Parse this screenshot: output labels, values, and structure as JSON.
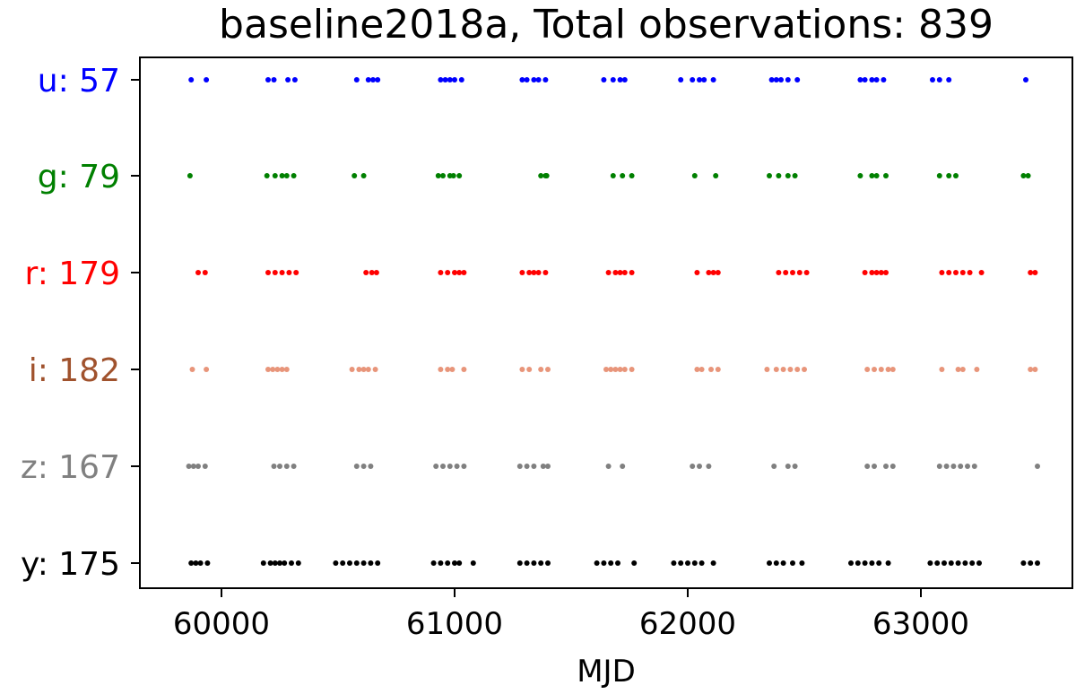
{
  "chart_data": {
    "type": "scatter",
    "title": "baseline2018a, Total observations: 839",
    "xlabel": "MJD",
    "ylabel": "",
    "xlim": [
      59650,
      63650
    ],
    "xticks": [
      "60000",
      "61000",
      "62000",
      "63000"
    ],
    "xtick_values": [
      60000,
      61000,
      62000,
      63000
    ],
    "grid": false,
    "legend": "none",
    "series": [
      {
        "label": "u: 57",
        "color": "#0000ff",
        "label_color": "#0000ff",
        "x": [
          59870,
          59935,
          60200,
          60225,
          60285,
          60315,
          60580,
          60630,
          60650,
          60670,
          60940,
          60960,
          60980,
          61000,
          61030,
          61290,
          61310,
          61340,
          61360,
          61390,
          61640,
          61680,
          61710,
          61730,
          61970,
          62020,
          62050,
          62070,
          62110,
          62360,
          62380,
          62400,
          62430,
          62470,
          62740,
          62760,
          62790,
          62810,
          62840,
          63050,
          63080,
          63120,
          63450
        ]
      },
      {
        "label": "g: 79",
        "color": "#008000",
        "label_color": "#008000",
        "x": [
          59865,
          60195,
          60230,
          60260,
          60280,
          60310,
          60570,
          60610,
          60930,
          60950,
          60980,
          60995,
          61020,
          61370,
          61395,
          61390,
          61680,
          61720,
          61760,
          62030,
          62120,
          62350,
          62390,
          62430,
          62460,
          62740,
          62790,
          62810,
          62850,
          63080,
          63120,
          63150,
          63440,
          63460
        ]
      },
      {
        "label": "r: 179",
        "color": "#ff0000",
        "label_color": "#ff0000",
        "x": [
          59900,
          59930,
          60200,
          60230,
          60260,
          60290,
          60320,
          60620,
          60645,
          60665,
          60940,
          60970,
          61000,
          61020,
          61040,
          61290,
          61320,
          61340,
          61360,
          61390,
          61660,
          61690,
          61710,
          61730,
          61760,
          62040,
          62090,
          62110,
          62130,
          62390,
          62420,
          62450,
          62480,
          62510,
          62760,
          62790,
          62810,
          62830,
          62850,
          63090,
          63120,
          63150,
          63180,
          63210,
          63260,
          63470,
          63490
        ]
      },
      {
        "label": "i: 182",
        "color": "#e8957a",
        "label_color": "#a0522d",
        "x": [
          59875,
          59935,
          60200,
          60220,
          60240,
          60260,
          60280,
          60560,
          60590,
          60610,
          60630,
          60660,
          60940,
          60970,
          60990,
          61040,
          61290,
          61320,
          61370,
          61400,
          61650,
          61670,
          61690,
          61710,
          61730,
          61760,
          62040,
          62060,
          62100,
          62130,
          62340,
          62380,
          62410,
          62440,
          62470,
          62500,
          62770,
          62800,
          62830,
          62860,
          62880,
          63090,
          63160,
          63180,
          63240,
          63470,
          63490
        ]
      },
      {
        "label": "z: 167",
        "color": "#808080",
        "label_color": "#808080",
        "x": [
          59860,
          59880,
          59900,
          59930,
          60225,
          60250,
          60280,
          60310,
          60580,
          60610,
          60640,
          60920,
          60950,
          60980,
          61010,
          61040,
          61280,
          61310,
          61340,
          61380,
          61400,
          61660,
          61720,
          62020,
          62050,
          62090,
          62370,
          62430,
          62460,
          62770,
          62800,
          62850,
          62880,
          63080,
          63110,
          63140,
          63170,
          63200,
          63230,
          63500
        ]
      },
      {
        "label": "y: 175",
        "color": "#000000",
        "label_color": "#000000",
        "x": [
          59870,
          59890,
          59910,
          59940,
          60180,
          60210,
          60230,
          60250,
          60270,
          60300,
          60330,
          60490,
          60520,
          60550,
          60580,
          60610,
          60640,
          60670,
          60910,
          60940,
          60970,
          61000,
          61020,
          61080,
          61280,
          61310,
          61340,
          61370,
          61400,
          61610,
          61640,
          61670,
          61700,
          61770,
          61940,
          61970,
          62000,
          62030,
          62060,
          62110,
          62350,
          62380,
          62410,
          62450,
          62490,
          62700,
          62730,
          62760,
          62790,
          62820,
          62860,
          63040,
          63070,
          63100,
          63130,
          63160,
          63190,
          63220,
          63250,
          63440,
          63470,
          63500
        ]
      }
    ]
  }
}
